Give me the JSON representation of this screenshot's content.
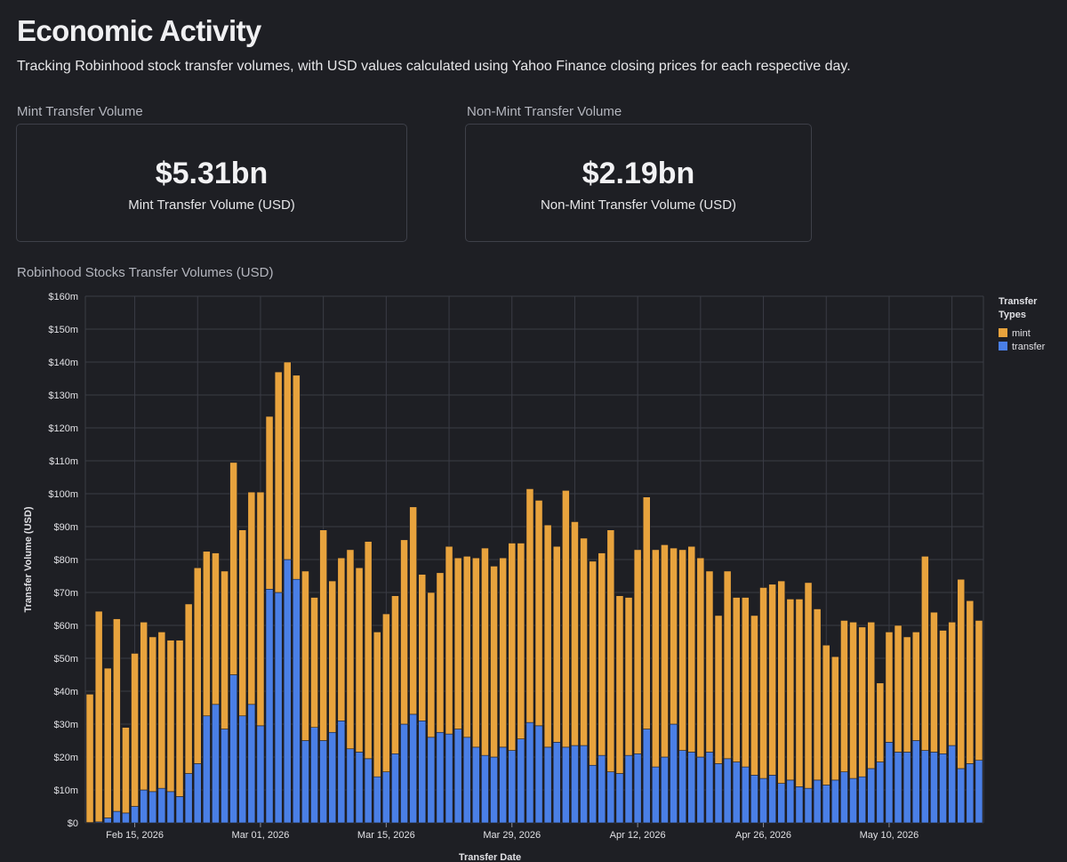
{
  "page": {
    "title": "Economic Activity",
    "subtitle": "Tracking Robinhood stock transfer volumes, with USD values calculated using Yahoo Finance closing prices for each respective day."
  },
  "metrics": [
    {
      "label": "Mint Transfer Volume",
      "value": "$5.31bn",
      "caption": "Mint Transfer Volume (USD)"
    },
    {
      "label": "Non-Mint Transfer Volume",
      "value": "$2.19bn",
      "caption": "Non-Mint Transfer Volume (USD)"
    }
  ],
  "chart_heading": "Robinhood Stocks Transfer Volumes (USD)",
  "colors": {
    "mint": "#e8a33d",
    "transfer": "#4a7fe6",
    "grid": "#3a3c45",
    "axis_text": "#e0e0e4"
  },
  "chart_data": {
    "type": "bar",
    "stacked": true,
    "xlabel": "Transfer Date",
    "ylabel": "Transfer Volume (USD)",
    "ylim": [
      0,
      160
    ],
    "y_unit": "millions USD",
    "y_ticks": [
      "$0",
      "$10m",
      "$20m",
      "$30m",
      "$40m",
      "$50m",
      "$60m",
      "$70m",
      "$80m",
      "$90m",
      "$100m",
      "$110m",
      "$120m",
      "$130m",
      "$140m",
      "$150m",
      "$160m"
    ],
    "x_ticks": [
      {
        "date": "2026-02-15",
        "label": "Feb 15, 2026"
      },
      {
        "date": "2026-03-01",
        "label": "Mar 01, 2026"
      },
      {
        "date": "2026-03-15",
        "label": "Mar 15, 2026"
      },
      {
        "date": "2026-03-29",
        "label": "Mar 29, 2026"
      },
      {
        "date": "2026-04-12",
        "label": "Apr 12, 2026"
      },
      {
        "date": "2026-04-26",
        "label": "Apr 26, 2026"
      },
      {
        "date": "2026-05-10",
        "label": "May 10, 2026"
      }
    ],
    "legend": {
      "title": "Transfer Types",
      "position": "top-right"
    },
    "x": [
      "2026-02-10",
      "2026-02-11",
      "2026-02-12",
      "2026-02-13",
      "2026-02-14",
      "2026-02-15",
      "2026-02-16",
      "2026-02-17",
      "2026-02-18",
      "2026-02-19",
      "2026-02-20",
      "2026-02-21",
      "2026-02-22",
      "2026-02-23",
      "2026-02-24",
      "2026-02-25",
      "2026-02-26",
      "2026-02-27",
      "2026-02-28",
      "2026-03-01",
      "2026-03-02",
      "2026-03-03",
      "2026-03-04",
      "2026-03-05",
      "2026-03-06",
      "2026-03-07",
      "2026-03-08",
      "2026-03-09",
      "2026-03-10",
      "2026-03-11",
      "2026-03-12",
      "2026-03-13",
      "2026-03-14",
      "2026-03-15",
      "2026-03-16",
      "2026-03-17",
      "2026-03-18",
      "2026-03-19",
      "2026-03-20",
      "2026-03-21",
      "2026-03-22",
      "2026-03-23",
      "2026-03-24",
      "2026-03-25",
      "2026-03-26",
      "2026-03-27",
      "2026-03-28",
      "2026-03-29",
      "2026-03-30",
      "2026-03-31",
      "2026-04-01",
      "2026-04-02",
      "2026-04-03",
      "2026-04-04",
      "2026-04-05",
      "2026-04-06",
      "2026-04-07",
      "2026-04-08",
      "2026-04-09",
      "2026-04-10",
      "2026-04-11",
      "2026-04-12",
      "2026-04-13",
      "2026-04-14",
      "2026-04-15",
      "2026-04-16",
      "2026-04-17",
      "2026-04-18",
      "2026-04-19",
      "2026-04-20",
      "2026-04-21",
      "2026-04-22",
      "2026-04-23",
      "2026-04-24",
      "2026-04-25",
      "2026-04-26",
      "2026-04-27",
      "2026-04-28",
      "2026-04-29",
      "2026-04-30",
      "2026-05-01",
      "2026-05-02",
      "2026-05-03",
      "2026-05-04",
      "2026-05-05",
      "2026-05-06",
      "2026-05-07",
      "2026-05-08",
      "2026-05-09",
      "2026-05-10",
      "2026-05-11",
      "2026-05-12",
      "2026-05-13",
      "2026-05-14",
      "2026-05-15",
      "2026-05-16",
      "2026-05-17",
      "2026-05-18",
      "2026-05-19",
      "2026-05-20"
    ],
    "series": [
      {
        "name": "transfer",
        "values": [
          0.1,
          0.3,
          1.5,
          3.5,
          3,
          5,
          10,
          9.5,
          10.5,
          9.5,
          8,
          15,
          18,
          32.5,
          36,
          28.5,
          45,
          32.5,
          36,
          29.5,
          71,
          70,
          80,
          74,
          25,
          29,
          25,
          27.5,
          31,
          22.5,
          21.5,
          19.5,
          14,
          15.5,
          21,
          30,
          33,
          31,
          26,
          27.5,
          27,
          28.5,
          26,
          23,
          20.5,
          20,
          23,
          22,
          25.5,
          30.5,
          29.5,
          23,
          24.5,
          23,
          23.5,
          23.5,
          17.5,
          20.5,
          15.5,
          15,
          20.5,
          21,
          28.5,
          17,
          20,
          30,
          22,
          21.5,
          20,
          21.5,
          18,
          19.5,
          18.5,
          17,
          14.5,
          13.5,
          14.5,
          12,
          13,
          11,
          10.5,
          13,
          11.5,
          13,
          15.5,
          13.5,
          14,
          16.5,
          18.5,
          24.5,
          21.5,
          21.5,
          25,
          22,
          21.5,
          21,
          23.5,
          16.5,
          18,
          19
        ]
      },
      {
        "name": "mint",
        "values": [
          39,
          64,
          45.5,
          58.5,
          26,
          46.5,
          51,
          47,
          47.5,
          46,
          47.5,
          51.5,
          59.5,
          50,
          46,
          48,
          64.5,
          56.5,
          64.5,
          71,
          52.5,
          67,
          60,
          62,
          51.5,
          39.5,
          64,
          46,
          49.5,
          60.5,
          56,
          66,
          44,
          48,
          48,
          56,
          63,
          44.5,
          44,
          48.5,
          57,
          52,
          55,
          57.5,
          63,
          58,
          57.5,
          63,
          59.5,
          71,
          68.5,
          67.5,
          59.5,
          78,
          68,
          63,
          62,
          61.5,
          73.5,
          54,
          48,
          62,
          70.5,
          66,
          64.5,
          53.5,
          61,
          62.5,
          60.5,
          55,
          45,
          57,
          50,
          51.5,
          48.5,
          58,
          58,
          61.5,
          55,
          57,
          62.5,
          52,
          42.5,
          37.5,
          46,
          47.5,
          45.5,
          44.5,
          24,
          33.5,
          38.5,
          35,
          33,
          59,
          42.5,
          37.5,
          37.5,
          57.5,
          49.5,
          42.5
        ]
      }
    ]
  }
}
